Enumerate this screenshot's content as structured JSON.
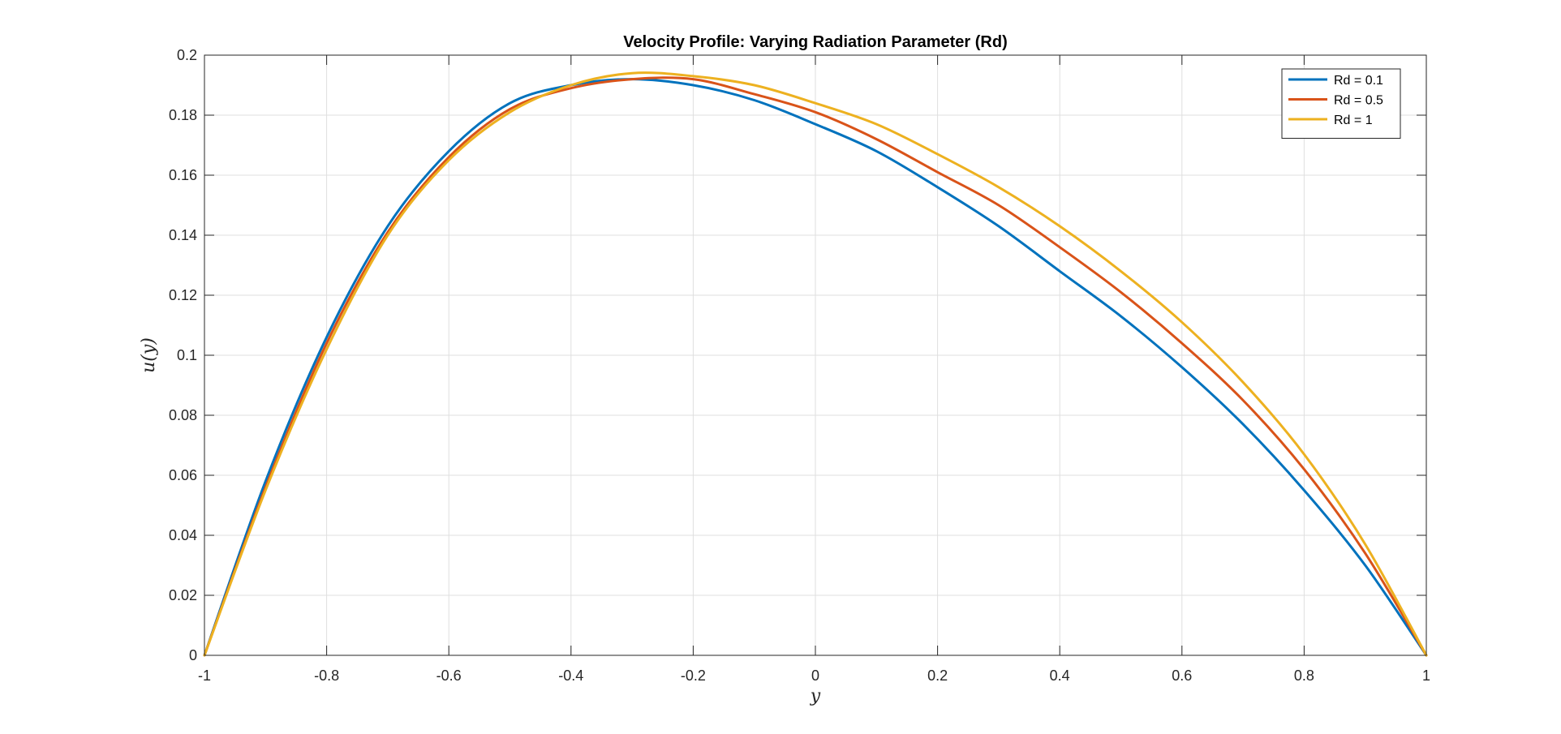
{
  "chart_data": {
    "type": "line",
    "title": "Velocity Profile: Varying Radiation Parameter (Rd)",
    "xlabel": "y",
    "ylabel": "u(y)",
    "xlim": [
      -1,
      1
    ],
    "ylim": [
      0,
      0.2
    ],
    "xticks": [
      -1,
      -0.8,
      -0.6,
      -0.4,
      -0.2,
      0,
      0.2,
      0.4,
      0.6,
      0.8,
      1
    ],
    "yticks": [
      0,
      0.02,
      0.04,
      0.06,
      0.08,
      0.1,
      0.12,
      0.14,
      0.16,
      0.18,
      0.2
    ],
    "xtick_labels": [
      "-1",
      "-0.8",
      "-0.6",
      "-0.4",
      "-0.2",
      "0",
      "0.2",
      "0.4",
      "0.6",
      "0.8",
      "1"
    ],
    "ytick_labels": [
      "0",
      "0.02",
      "0.04",
      "0.06",
      "0.08",
      "0.1",
      "0.12",
      "0.14",
      "0.16",
      "0.18",
      "0.2"
    ],
    "grid": true,
    "legend_position": "top-right",
    "x": [
      -1,
      -0.9,
      -0.8,
      -0.7,
      -0.6,
      -0.5,
      -0.4,
      -0.3,
      -0.2,
      -0.1,
      0,
      0.1,
      0.2,
      0.3,
      0.4,
      0.5,
      0.6,
      0.7,
      0.8,
      0.9,
      1
    ],
    "series": [
      {
        "name": "Rd = 0.1",
        "color": "#0072BD",
        "values": [
          0,
          0.058,
          0.106,
          0.143,
          0.168,
          0.184,
          0.19,
          0.192,
          0.19,
          0.185,
          0.177,
          0.168,
          0.156,
          0.143,
          0.128,
          0.113,
          0.096,
          0.077,
          0.055,
          0.03,
          0
        ]
      },
      {
        "name": "Rd = 0.5",
        "color": "#D95319",
        "values": [
          0,
          0.056,
          0.104,
          0.141,
          0.166,
          0.182,
          0.189,
          0.192,
          0.192,
          0.187,
          0.181,
          0.172,
          0.161,
          0.15,
          0.136,
          0.121,
          0.104,
          0.085,
          0.062,
          0.034,
          0
        ]
      },
      {
        "name": "Rd = 1",
        "color": "#EDB120",
        "values": [
          0,
          0.055,
          0.102,
          0.14,
          0.165,
          0.181,
          0.19,
          0.194,
          0.193,
          0.19,
          0.184,
          0.177,
          0.167,
          0.156,
          0.143,
          0.128,
          0.111,
          0.091,
          0.067,
          0.037,
          0
        ]
      }
    ]
  }
}
